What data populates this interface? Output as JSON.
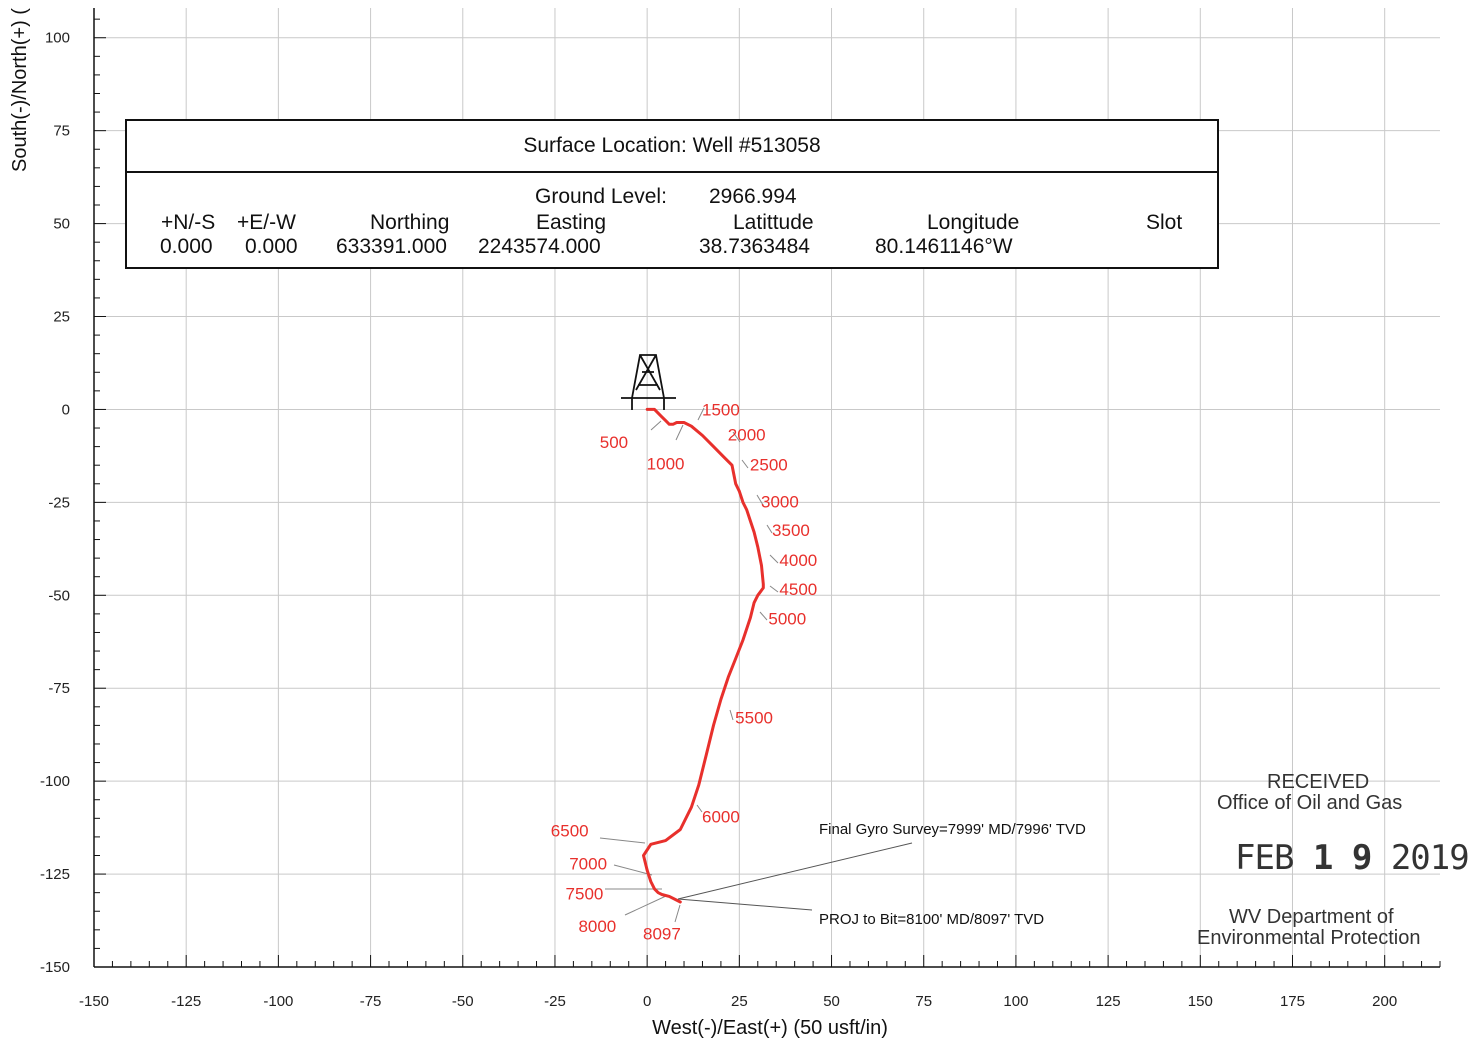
{
  "chart_data": {
    "type": "line",
    "xlabel": "West(-)/East(+) (50 usft/in)",
    "ylabel": "South(-)/North(+) (",
    "xlim": [
      -150,
      215
    ],
    "ylim": [
      -150,
      108
    ],
    "x_ticks": [
      -150,
      -125,
      -100,
      -75,
      -50,
      -25,
      0,
      25,
      50,
      75,
      100,
      125,
      150,
      175,
      200
    ],
    "y_ticks": [
      100,
      75,
      50,
      25,
      0,
      -25,
      -50,
      -75,
      -100,
      -125,
      -150
    ],
    "grid": true,
    "series": [
      {
        "color": "#e8302c",
        "x": [
          0,
          2,
          3,
          4,
          5,
          6,
          7,
          8,
          9,
          10,
          12,
          15,
          18,
          21,
          23,
          24,
          25,
          26,
          27,
          28,
          29,
          30,
          31,
          31.5,
          31.5,
          30,
          29,
          28,
          26,
          24,
          22,
          20,
          18,
          16,
          14,
          12,
          9,
          5,
          1,
          -1,
          0,
          1,
          2,
          3,
          4,
          6,
          9
        ],
        "y": [
          0,
          0,
          -1,
          -2,
          -3,
          -4,
          -4,
          -3.5,
          -3.5,
          -3.5,
          -4.5,
          -7,
          -10,
          -13,
          -15,
          -20,
          -22,
          -25,
          -27,
          -30,
          -33,
          -37,
          -42,
          -47,
          -48,
          -50,
          -52,
          -56,
          -62,
          -67,
          -72,
          -78,
          -85,
          -93,
          -101,
          -107,
          -113,
          -116,
          -117,
          -120,
          -124,
          -127,
          -129,
          -130,
          -130.5,
          -131,
          -132.5
        ]
      }
    ],
    "md_labels": [
      {
        "text": "500",
        "x": -9,
        "y": -8.7
      },
      {
        "text": "1000",
        "x": 5,
        "y": -14.5
      },
      {
        "text": "1500",
        "x": 20,
        "y": 0
      },
      {
        "text": "2000",
        "x": 27,
        "y": -6.8
      },
      {
        "text": "2500",
        "x": 33,
        "y": -14.8
      },
      {
        "text": "3000",
        "x": 36,
        "y": -24.7
      },
      {
        "text": "3500",
        "x": 39,
        "y": -32.5
      },
      {
        "text": "4000",
        "x": 41,
        "y": -40.5
      },
      {
        "text": "4500",
        "x": 41,
        "y": -48.3
      },
      {
        "text": "5000",
        "x": 38,
        "y": -56.3
      },
      {
        "text": "5500",
        "x": 29,
        "y": -82.9
      },
      {
        "text": "6000",
        "x": 20,
        "y": -109.5
      },
      {
        "text": "6500",
        "x": -21,
        "y": -113.3
      },
      {
        "text": "7000",
        "x": -16,
        "y": -122.2
      },
      {
        "text": "7500",
        "x": -17,
        "y": -130.2
      },
      {
        "text": "8000",
        "x": -13.5,
        "y": -139
      },
      {
        "text": "8097",
        "x": 4,
        "y": -141
      }
    ],
    "annotations": [
      {
        "text": "Final Gyro Survey=7999' MD/7996' TVD"
      },
      {
        "text": "PROJ to Bit=8100' MD/8097' TVD"
      }
    ]
  },
  "surface_box": {
    "title": "Surface Location:  Well #513058",
    "ground_level_label": "Ground Level:",
    "ground_level_value": "2966.994",
    "headers": {
      "ns": "+N/-S",
      "ew": "+E/-W",
      "northing": "Northing",
      "easting": "Easting",
      "latitude": "Latittude",
      "longitude": "Longitude",
      "slot": "Slot"
    },
    "values": {
      "ns": "0.000",
      "ew": "0.000",
      "northing": "633391.000",
      "easting": "2243574.000",
      "latitude": "38.7363484",
      "longitude": "80.1461146°W"
    }
  },
  "stamp": {
    "line1": "RECEIVED",
    "line2": "Office of Oil and Gas",
    "date_month": "FEB",
    "date_day": "1 9",
    "date_year": "2019",
    "line3": "WV Department of",
    "line4": "Environmental Protection"
  }
}
